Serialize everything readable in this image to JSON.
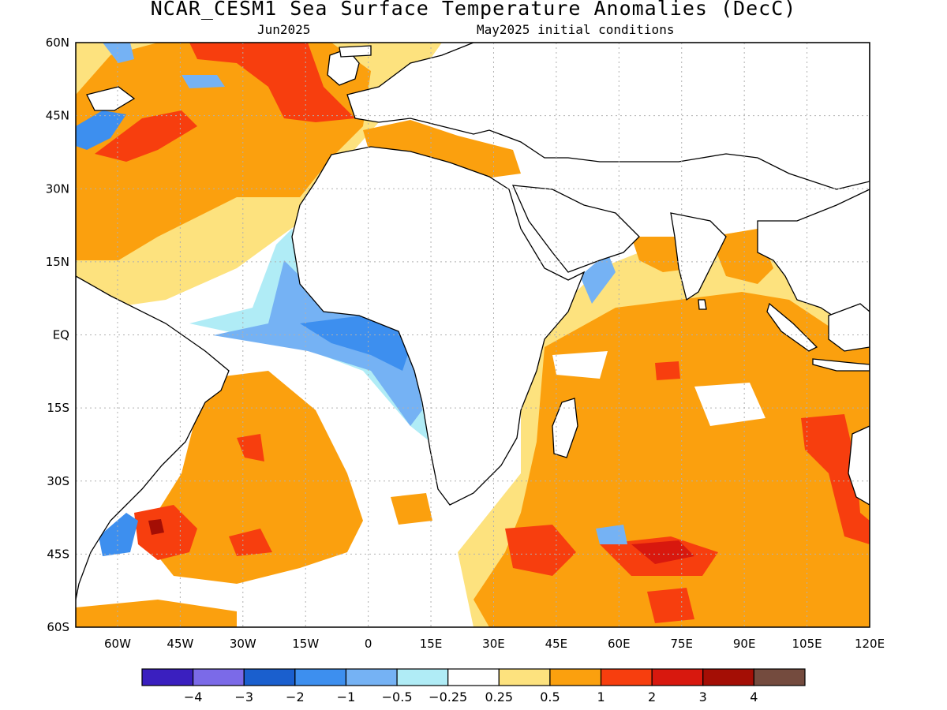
{
  "title": "NCAR_CESM1 Sea Surface Temperature Anomalies (DecC)",
  "subtitle_left": "Jun2025",
  "subtitle_right": "May2025 initial conditions",
  "lat_labels": [
    "60N",
    "45N",
    "30N",
    "15N",
    "EQ",
    "15S",
    "30S",
    "45S",
    "60S"
  ],
  "lon_labels": [
    "60W",
    "45W",
    "30W",
    "15W",
    "0",
    "15E",
    "30E",
    "45E",
    "60E",
    "75E",
    "90E",
    "105E",
    "120E"
  ],
  "colorbar": {
    "colors": [
      "#3a1fbf",
      "#7b6ae8",
      "#1a5fce",
      "#3d8fef",
      "#75b2f4",
      "#b0ecf6",
      "#ffffff",
      "#fde27e",
      "#fba00e",
      "#f73e0e",
      "#d8180e",
      "#a40e05",
      "#744b3e"
    ],
    "labels": [
      "-4",
      "-3",
      "-2",
      "-1",
      "-0.5",
      "-0.25",
      "0.25",
      "0.5",
      "1",
      "2",
      "3",
      "4"
    ]
  },
  "palette": {
    "light_orange": "#fde27e",
    "orange": "#fba00e",
    "red": "#f73e0e",
    "dark_red": "#d8180e",
    "maroon": "#a40e05",
    "light_blue": "#b0ecf6",
    "blue_mid": "#75b2f4",
    "blue": "#3d8fef",
    "deep_blue": "#1a5fce"
  },
  "map_extent": {
    "lon": [
      -70,
      120
    ],
    "lat": [
      -60,
      60
    ]
  }
}
